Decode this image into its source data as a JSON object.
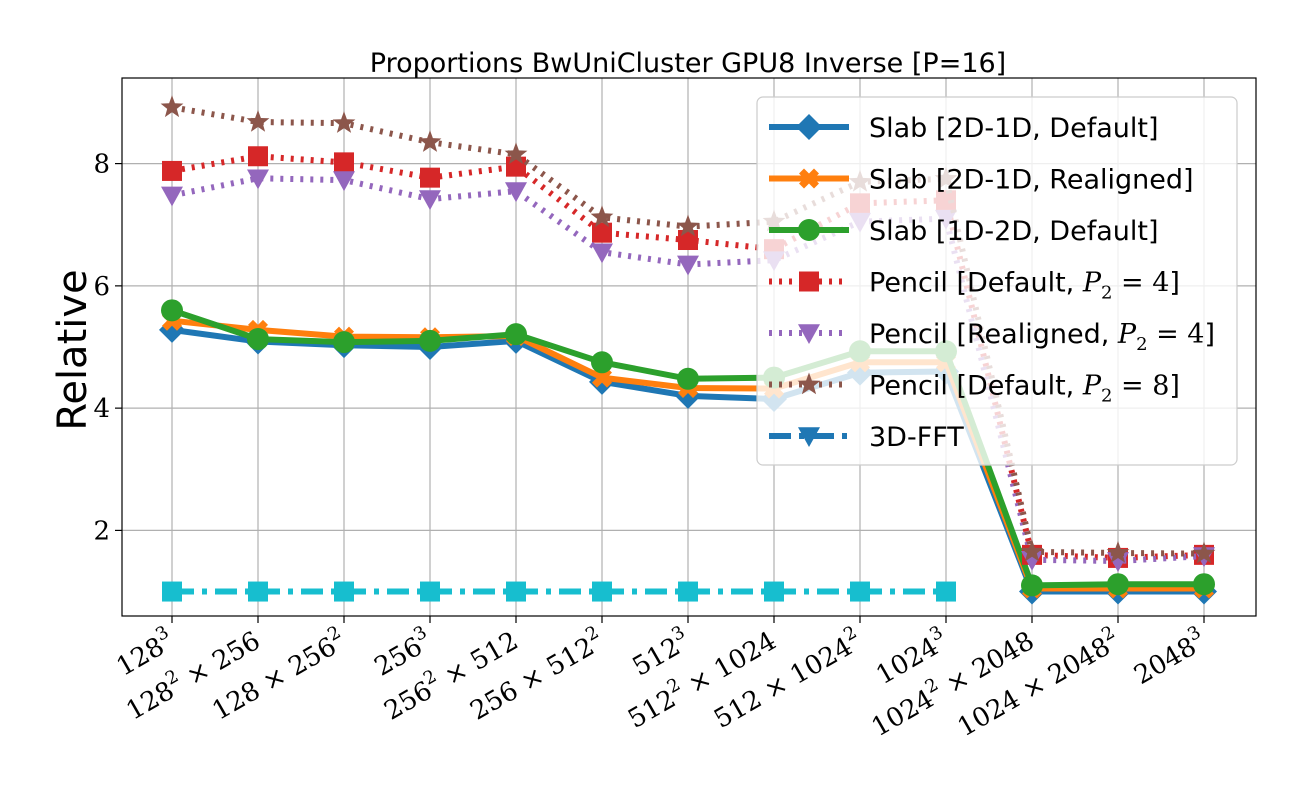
{
  "chart_data": {
    "type": "line",
    "title": "Proportions BwUniCluster GPU8 Inverse [P=16]",
    "xlabel": "",
    "ylabel": "Relative",
    "ylim": [
      0.6,
      9.4
    ],
    "yticks": [
      2,
      4,
      6,
      8
    ],
    "grid": true,
    "legend_position": "top-right",
    "categories": [
      "128^3",
      "128^2 × 256",
      "128 × 256^2",
      "256^3",
      "256^2 × 512",
      "256 × 512^2",
      "512^3",
      "512^2 × 1024",
      "512 × 1024^2",
      "1024^3",
      "1024^2 × 2048",
      "1024 × 2048^2",
      "2048^3"
    ],
    "series": [
      {
        "name": "Slab [2D-1D, Default]",
        "color": "#1f77b4",
        "linestyle": "solid",
        "marker": "diamond",
        "values": [
          5.28,
          5.09,
          5.03,
          5.0,
          5.1,
          4.43,
          4.2,
          4.15,
          4.58,
          4.6,
          1.0,
          1.0,
          1.0
        ]
      },
      {
        "name": "Slab [2D-1D, Realigned]",
        "color": "#ff7f0e",
        "linestyle": "solid",
        "marker": "x",
        "values": [
          5.43,
          5.28,
          5.17,
          5.16,
          5.18,
          4.5,
          4.33,
          4.32,
          4.75,
          4.75,
          1.05,
          1.05,
          1.05
        ]
      },
      {
        "name": "Slab [1D-2D, Default]",
        "color": "#2ca02c",
        "linestyle": "solid",
        "marker": "circle",
        "values": [
          5.6,
          5.13,
          5.08,
          5.1,
          5.21,
          4.75,
          4.48,
          4.5,
          4.93,
          4.93,
          1.1,
          1.12,
          1.12
        ]
      },
      {
        "name": "Pencil [Default, P_2 = 4]",
        "color": "#d62728",
        "linestyle": "dotted",
        "marker": "square",
        "values": [
          7.88,
          8.12,
          8.02,
          7.77,
          7.95,
          6.87,
          6.75,
          6.6,
          7.35,
          7.4,
          1.6,
          1.55,
          1.6
        ]
      },
      {
        "name": "Pencil [Realigned, P_2 = 4]",
        "color": "#9467bd",
        "linestyle": "dotted",
        "marker": "triangle-down",
        "values": [
          7.48,
          7.76,
          7.73,
          7.42,
          7.55,
          6.55,
          6.35,
          6.42,
          7.05,
          7.1,
          1.52,
          1.5,
          1.58
        ]
      },
      {
        "name": "Pencil [Default, P_2 = 8]",
        "color": "#8c564b",
        "linestyle": "dotted",
        "marker": "star",
        "values": [
          8.92,
          8.68,
          8.66,
          8.35,
          8.15,
          7.12,
          6.97,
          7.05,
          7.7,
          7.75,
          1.65,
          1.63,
          1.62
        ]
      },
      {
        "name": "3D-FFT",
        "color": "#17becf",
        "linestyle": "dashdot",
        "marker": "square",
        "values": [
          1.0,
          1.0,
          1.0,
          1.0,
          1.0,
          1.0,
          1.0,
          1.0,
          1.0,
          1.0,
          null,
          null,
          null
        ]
      }
    ],
    "legend": [
      {
        "text": "Slab [2D-1D, Default]"
      },
      {
        "text": "Slab [2D-1D, Realigned]"
      },
      {
        "text": "Slab [1D-2D, Default]"
      },
      {
        "text": "Pencil [Default, ",
        "sub": "2",
        "tail": " = 4]"
      },
      {
        "text": "Pencil [Realigned, ",
        "sub": "2",
        "tail": " = 4]"
      },
      {
        "text": "Pencil [Default, ",
        "sub": "2",
        "tail": " = 8]"
      },
      {
        "text": "3D-FFT"
      }
    ],
    "legend_marker_color_3dfft": "#1f77b4"
  }
}
